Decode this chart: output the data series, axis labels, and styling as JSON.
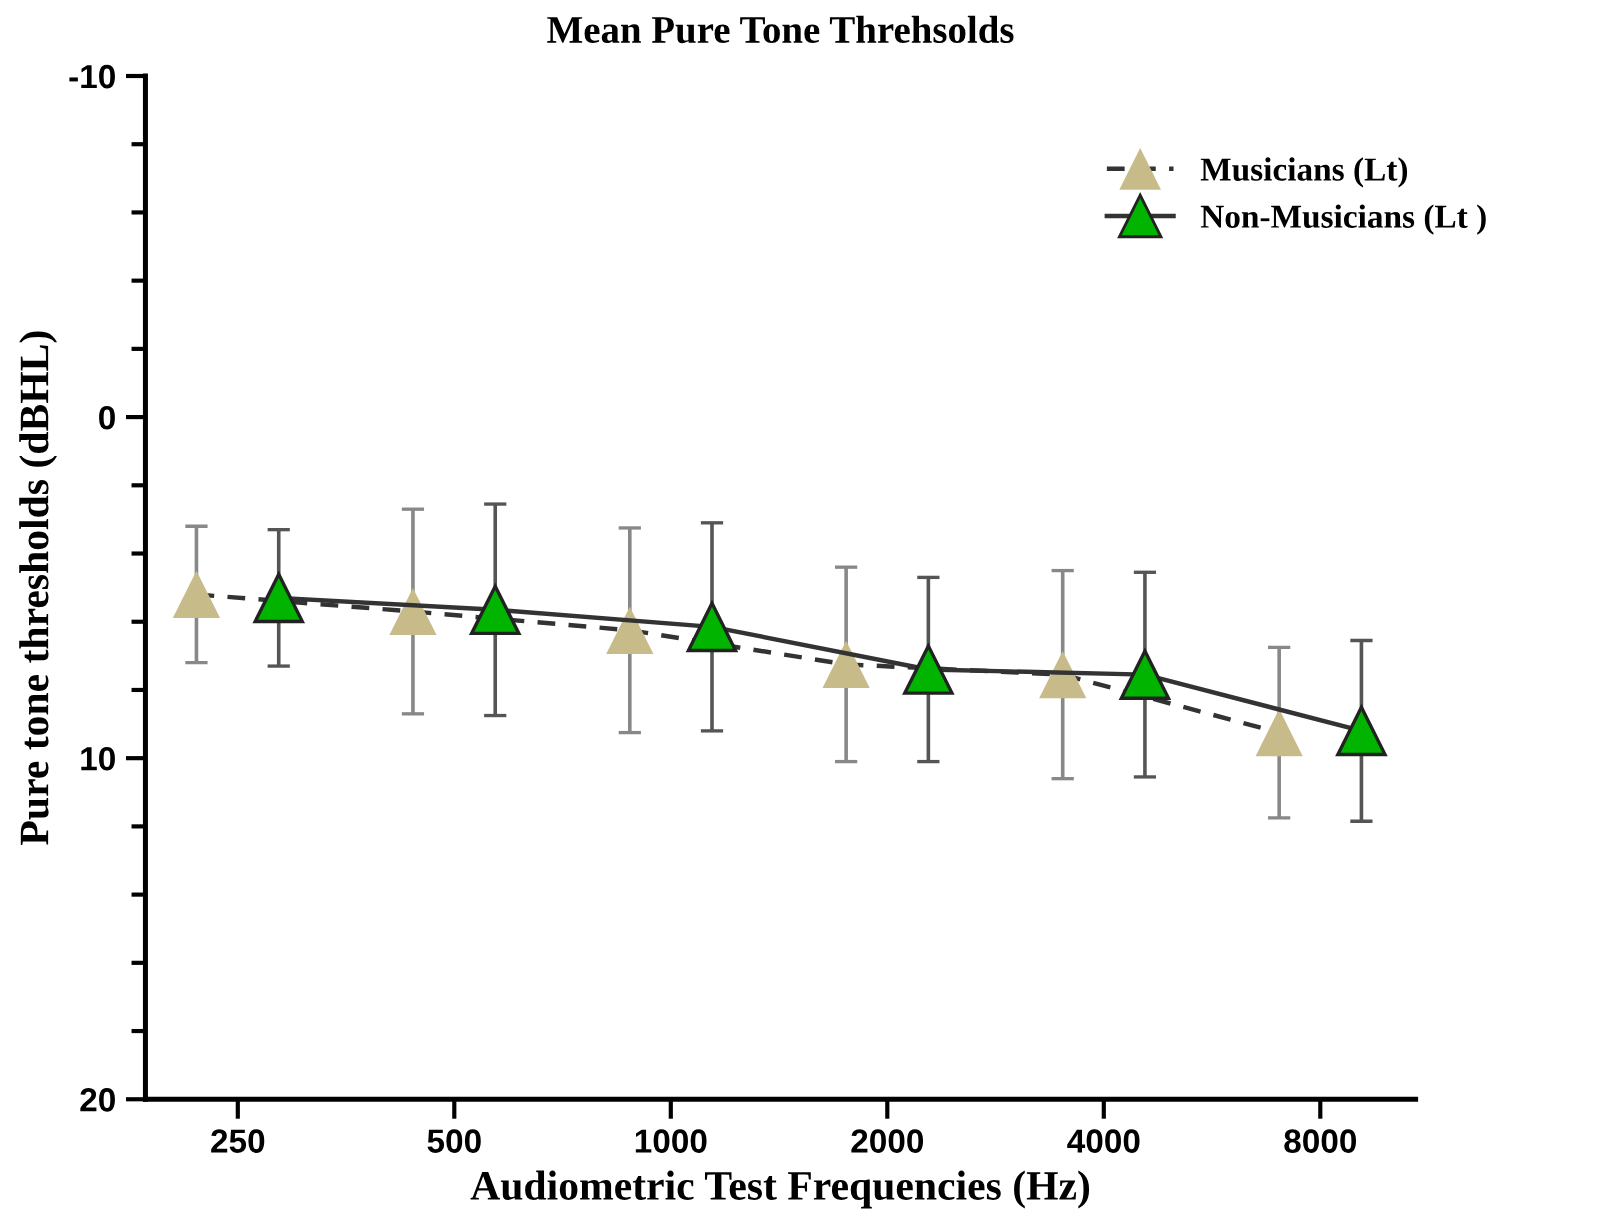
{
  "chart_data": {
    "type": "line",
    "title": "Mean Pure Tone Threhsolds",
    "xlabel": "Audiometric Test Frequencies (Hz)",
    "ylabel": "Pure tone thresholds (dBHL)",
    "log": "x",
    "xlim": [
      186,
      10855
    ],
    "xticks": [
      250,
      500,
      1000,
      2000,
      4000,
      8000
    ],
    "ylim": [
      20,
      -10
    ],
    "yticks": [
      -10,
      {
        "value": -8,
        "label": null
      },
      {
        "value": -6,
        "label": null
      },
      {
        "value": -4,
        "label": null
      },
      {
        "value": -2,
        "label": null
      },
      0,
      {
        "value": 2,
        "label": null
      },
      {
        "value": 4,
        "label": null
      },
      {
        "value": 6,
        "label": null
      },
      {
        "value": 8,
        "label": null
      },
      10,
      {
        "value": 12,
        "label": null
      },
      {
        "value": 14,
        "label": null
      },
      {
        "value": 16,
        "label": null
      },
      {
        "value": 18,
        "label": null
      },
      20
    ],
    "marker": "triangle",
    "legend": "top right",
    "series": [
      {
        "name": "Musicians (Lt)",
        "color": "#c8bb8a",
        "line_style": "dashed",
        "x": [
          219,
          438,
          877,
          1753,
          3507,
          7013
        ],
        "values": [
          5.2,
          5.7,
          6.25,
          7.25,
          7.55,
          9.25
        ],
        "errors": [
          2.0,
          3.0,
          3.0,
          2.85,
          3.05,
          2.5
        ]
      },
      {
        "name": "Non-Musicians (Lt )",
        "color": "#00b400",
        "line_style": "solid",
        "x": [
          285,
          570,
          1141,
          2281,
          4563,
          9126
        ],
        "values": [
          5.3,
          5.65,
          6.15,
          7.4,
          7.55,
          9.2
        ],
        "errors": [
          2.0,
          3.1,
          3.05,
          2.7,
          3.0,
          2.65
        ]
      }
    ]
  }
}
